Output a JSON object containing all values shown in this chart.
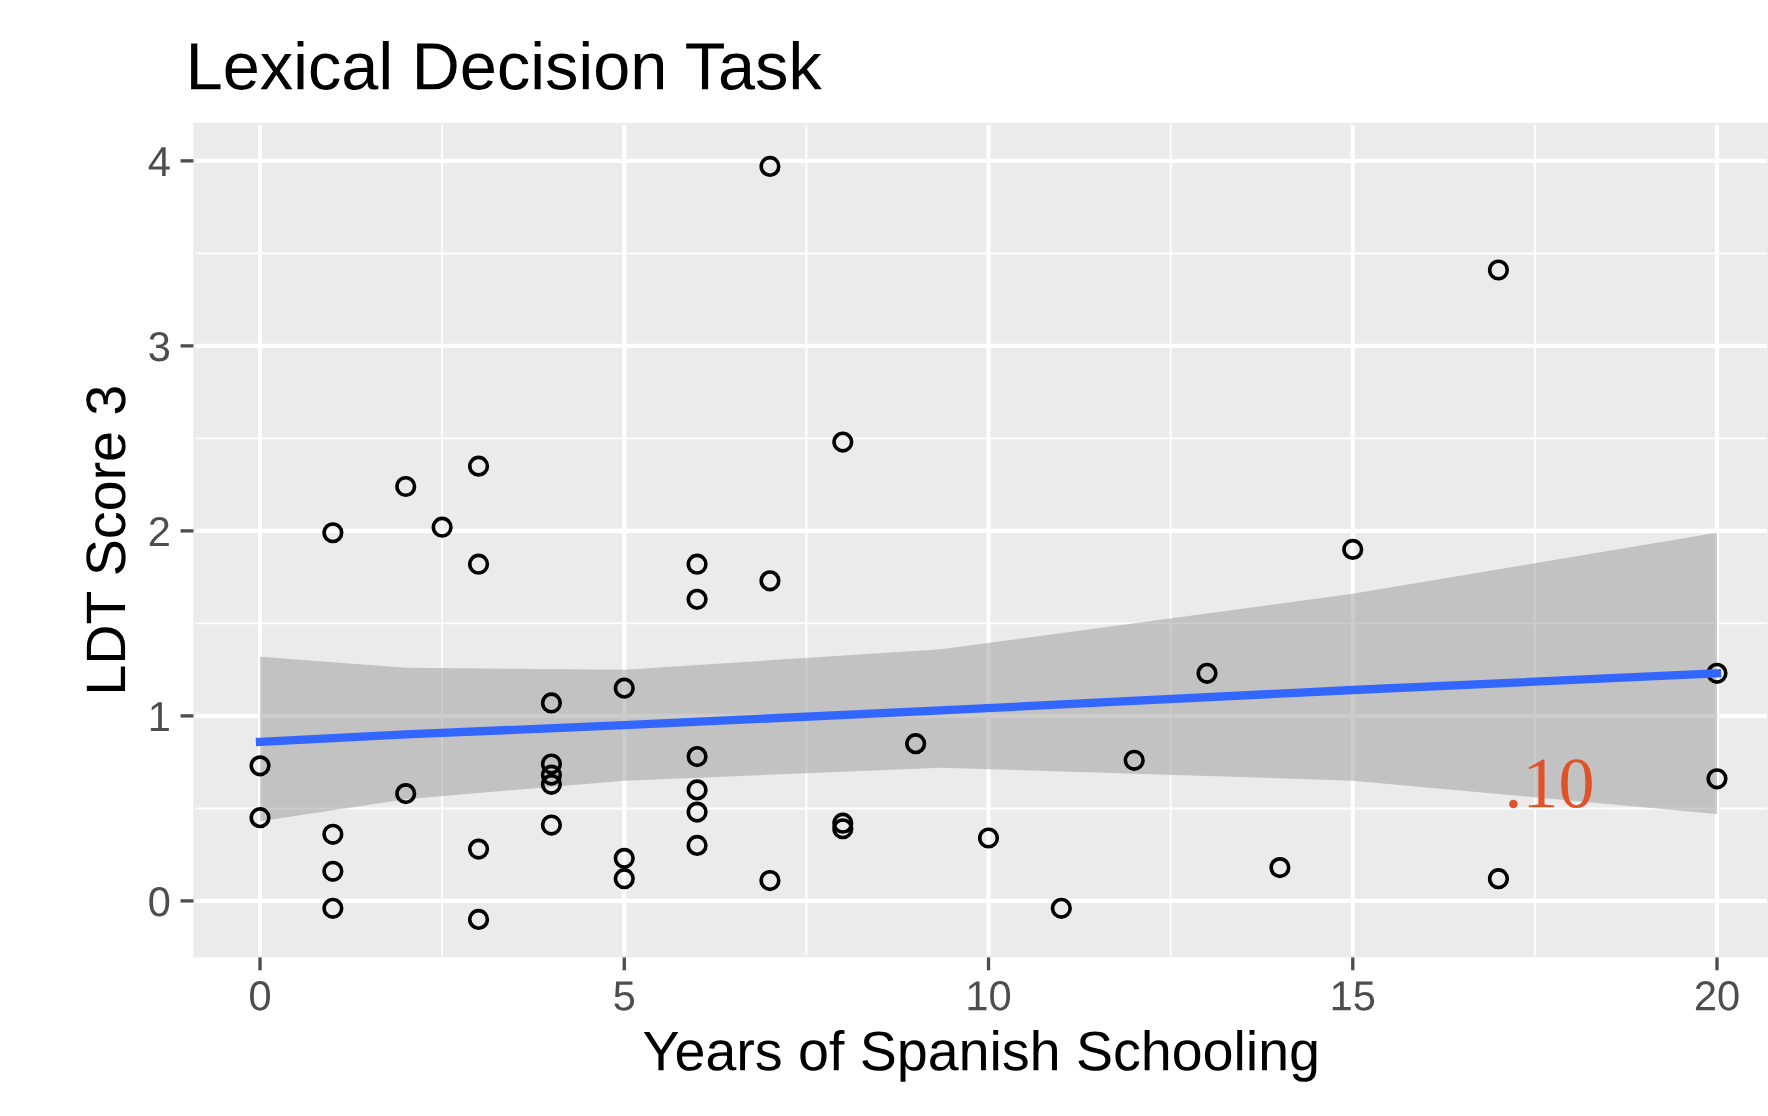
{
  "chart_data": {
    "type": "scatter",
    "title": "Lexical Decision Task",
    "xlabel": "Years of Spanish Schooling",
    "ylabel": "LDT Score 3",
    "xlim": [
      -0.9,
      20.7
    ],
    "ylim": [
      -0.3,
      4.2
    ],
    "xticks": [
      0,
      5,
      10,
      15,
      20
    ],
    "yticks": [
      0,
      1,
      2,
      3,
      4
    ],
    "grid": true,
    "annotations": [
      {
        "text": ".10",
        "x": 17.7,
        "y": 0.6
      }
    ],
    "series": [
      {
        "color": "#000000",
        "marker": "circle",
        "x": [
          0,
          0,
          1,
          1,
          1,
          1,
          2,
          2,
          2.5,
          3,
          3,
          3,
          3,
          4,
          4,
          4,
          4,
          4,
          5,
          5,
          5,
          6,
          6,
          6,
          6,
          6,
          6,
          7,
          7,
          7,
          8,
          8,
          8,
          9,
          10,
          11,
          12,
          13,
          14,
          15,
          17,
          17,
          20,
          20
        ],
        "values": [
          0.73,
          0.45,
          1.99,
          0.36,
          0.16,
          -0.04,
          2.24,
          0.58,
          2.02,
          2.35,
          1.82,
          0.28,
          -0.1,
          1.07,
          0.74,
          0.68,
          0.63,
          0.41,
          1.15,
          0.23,
          0.12,
          1.82,
          1.63,
          0.78,
          0.6,
          0.48,
          0.3,
          3.97,
          1.73,
          0.11,
          2.48,
          0.42,
          0.39,
          0.85,
          0.34,
          -0.04,
          0.76,
          1.23,
          0.18,
          1.9,
          3.41,
          0.12,
          1.23,
          0.66
        ]
      },
      {
        "type": "line",
        "color": "#3366ff",
        "x": [
          0,
          2,
          5,
          9.35,
          15,
          20
        ],
        "values": [
          0.86,
          0.9,
          0.95,
          1.03,
          1.14,
          1.23
        ],
        "lower": [
          0.43,
          0.55,
          0.65,
          0.72,
          0.65,
          0.47
        ],
        "upper": [
          1.32,
          1.26,
          1.25,
          1.36,
          1.66,
          1.99
        ]
      }
    ]
  }
}
